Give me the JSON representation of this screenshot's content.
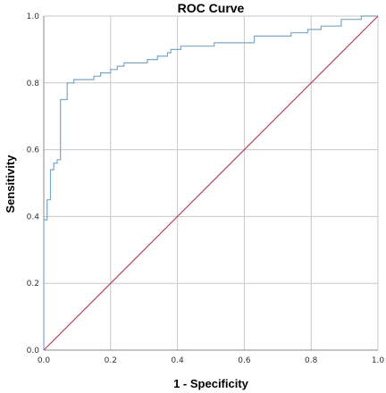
{
  "chart_data": {
    "type": "line",
    "title": "ROC Curve",
    "xlabel": "1 - Specificity",
    "ylabel": "Sensitivity",
    "xlim": [
      0,
      1
    ],
    "ylim": [
      0,
      1
    ],
    "x_ticks": [
      "0.0",
      "0.2",
      "0.4",
      "0.6",
      "0.8",
      "1.0"
    ],
    "y_ticks": [
      "0.0",
      "0.2",
      "0.4",
      "0.6",
      "0.8",
      "1.0"
    ],
    "grid": true,
    "legend": "none",
    "series": [
      {
        "color": "#7ba7c9",
        "points": [
          [
            0.0,
            0.0
          ],
          [
            0.0,
            0.39
          ],
          [
            0.01,
            0.39
          ],
          [
            0.01,
            0.45
          ],
          [
            0.02,
            0.45
          ],
          [
            0.02,
            0.54
          ],
          [
            0.03,
            0.54
          ],
          [
            0.03,
            0.56
          ],
          [
            0.04,
            0.56
          ],
          [
            0.04,
            0.57
          ],
          [
            0.05,
            0.57
          ],
          [
            0.05,
            0.7
          ],
          [
            0.05,
            0.75
          ],
          [
            0.07,
            0.75
          ],
          [
            0.07,
            0.8
          ],
          [
            0.09,
            0.8
          ],
          [
            0.09,
            0.81
          ],
          [
            0.15,
            0.81
          ],
          [
            0.15,
            0.82
          ],
          [
            0.17,
            0.82
          ],
          [
            0.17,
            0.83
          ],
          [
            0.2,
            0.83
          ],
          [
            0.2,
            0.84
          ],
          [
            0.22,
            0.84
          ],
          [
            0.22,
            0.85
          ],
          [
            0.24,
            0.85
          ],
          [
            0.24,
            0.86
          ],
          [
            0.31,
            0.86
          ],
          [
            0.31,
            0.87
          ],
          [
            0.34,
            0.87
          ],
          [
            0.34,
            0.88
          ],
          [
            0.37,
            0.88
          ],
          [
            0.37,
            0.89
          ],
          [
            0.38,
            0.89
          ],
          [
            0.38,
            0.9
          ],
          [
            0.41,
            0.9
          ],
          [
            0.41,
            0.91
          ],
          [
            0.51,
            0.91
          ],
          [
            0.51,
            0.92
          ],
          [
            0.63,
            0.92
          ],
          [
            0.63,
            0.94
          ],
          [
            0.74,
            0.94
          ],
          [
            0.74,
            0.95
          ],
          [
            0.79,
            0.95
          ],
          [
            0.79,
            0.96
          ],
          [
            0.83,
            0.96
          ],
          [
            0.83,
            0.97
          ],
          [
            0.89,
            0.97
          ],
          [
            0.89,
            0.99
          ],
          [
            0.95,
            0.99
          ],
          [
            0.95,
            1.0
          ],
          [
            1.0,
            1.0
          ]
        ]
      },
      {
        "color": "#c0405a",
        "points": [
          [
            0.0,
            0.0
          ],
          [
            1.0,
            1.0
          ]
        ]
      }
    ]
  },
  "colors": {
    "grid": "#c8c8c8",
    "axis": "#888888",
    "frame": "#bdbdbd"
  }
}
